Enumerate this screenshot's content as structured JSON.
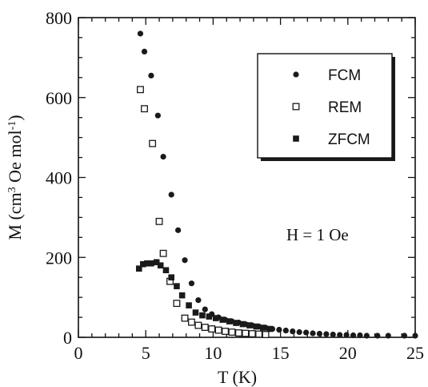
{
  "chart_data": {
    "type": "scatter",
    "xlabel": "T (K)",
    "ylabel_parts": {
      "pre": "M (cm",
      "sup1": "3",
      "mid": " Oe mol",
      "sup2": "-1",
      "post": ")"
    },
    "xlim": [
      0,
      25
    ],
    "ylim": [
      0,
      800
    ],
    "x_ticks": [
      "0",
      "5",
      "10",
      "15",
      "20",
      "25"
    ],
    "y_ticks": [
      "0",
      "200",
      "400",
      "600",
      "800"
    ],
    "annotation": "H = 1 Oe",
    "legend_position": "top-right",
    "series": [
      {
        "name": "FCM",
        "marker": "filled-circle",
        "color": "#1a1a1a",
        "points": [
          [
            4.6,
            760
          ],
          [
            4.9,
            715
          ],
          [
            5.4,
            655
          ],
          [
            5.9,
            555
          ],
          [
            6.3,
            452
          ],
          [
            6.9,
            357
          ],
          [
            7.4,
            268
          ],
          [
            7.9,
            193
          ],
          [
            8.4,
            135
          ],
          [
            8.9,
            93
          ],
          [
            9.4,
            70
          ],
          [
            9.9,
            58
          ],
          [
            10.4,
            50
          ],
          [
            10.9,
            44
          ],
          [
            11.4,
            40
          ],
          [
            11.9,
            37
          ],
          [
            12.4,
            33
          ],
          [
            12.9,
            30
          ],
          [
            13.4,
            27
          ],
          [
            13.9,
            24
          ],
          [
            14.4,
            21
          ],
          [
            14.9,
            19
          ],
          [
            15.4,
            17
          ],
          [
            15.9,
            15
          ],
          [
            16.4,
            13
          ],
          [
            16.9,
            12
          ],
          [
            17.4,
            10
          ],
          [
            17.9,
            9
          ],
          [
            18.4,
            8
          ],
          [
            18.9,
            7
          ],
          [
            19.4,
            6
          ],
          [
            19.9,
            6
          ],
          [
            20.4,
            5
          ],
          [
            20.9,
            5
          ],
          [
            21.4,
            4
          ],
          [
            22.2,
            4
          ],
          [
            23.0,
            4
          ],
          [
            24.2,
            4
          ],
          [
            25.0,
            4
          ]
        ]
      },
      {
        "name": "REM",
        "marker": "open-square",
        "color": "#1a1a1a",
        "points": [
          [
            4.6,
            620
          ],
          [
            4.9,
            572
          ],
          [
            5.5,
            485
          ],
          [
            6.0,
            290
          ],
          [
            6.3,
            210
          ],
          [
            6.8,
            140
          ],
          [
            7.3,
            85
          ],
          [
            7.9,
            48
          ],
          [
            8.4,
            38
          ],
          [
            8.9,
            30
          ],
          [
            9.4,
            25
          ],
          [
            9.9,
            21
          ],
          [
            10.4,
            18
          ],
          [
            10.9,
            15
          ],
          [
            11.4,
            13
          ],
          [
            11.9,
            11
          ],
          [
            12.4,
            10
          ],
          [
            12.9,
            9
          ],
          [
            13.4,
            8
          ],
          [
            13.9,
            7
          ]
        ]
      },
      {
        "name": "ZFCM",
        "marker": "filled-square",
        "color": "#1a1a1a",
        "points": [
          [
            4.5,
            172
          ],
          [
            4.8,
            183
          ],
          [
            5.1,
            185
          ],
          [
            5.4,
            185
          ],
          [
            5.8,
            188
          ],
          [
            6.1,
            180
          ],
          [
            6.5,
            168
          ],
          [
            6.9,
            150
          ],
          [
            7.3,
            128
          ],
          [
            7.7,
            105
          ],
          [
            8.2,
            80
          ],
          [
            8.7,
            62
          ],
          [
            9.2,
            55
          ],
          [
            9.7,
            52
          ],
          [
            10.2,
            48
          ],
          [
            10.7,
            44
          ],
          [
            11.2,
            40
          ],
          [
            11.7,
            36
          ],
          [
            12.2,
            33
          ],
          [
            12.7,
            30
          ],
          [
            13.2,
            27
          ],
          [
            13.7,
            24
          ],
          [
            14.2,
            21
          ]
        ]
      }
    ]
  }
}
